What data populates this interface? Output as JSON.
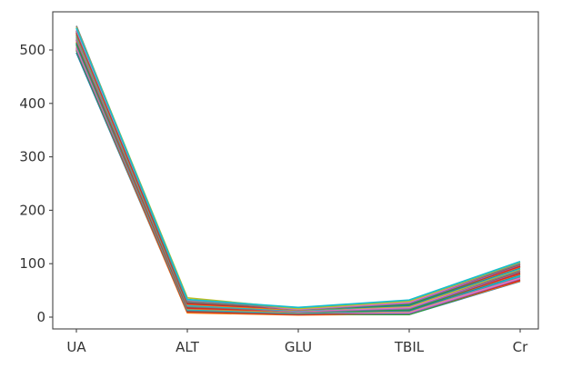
{
  "figure": {
    "background_color": "#ffffff"
  },
  "chart_data": {
    "type": "line",
    "title": "",
    "xlabel": "",
    "ylabel": "",
    "categories": [
      "UA",
      "ALT",
      "GLU",
      "TBIL",
      "Cr"
    ],
    "yticks": [
      0,
      100,
      200,
      300,
      400,
      500
    ],
    "ylim": [
      -22,
      571
    ],
    "grid": false,
    "legend": "none",
    "styles": {
      "axis_color": "#444444",
      "tick_label_color": "#333333",
      "tick_label_font_px": 15,
      "line_width": 1.7,
      "tick_length": 4
    },
    "series": [
      {
        "color": "#1f77b4",
        "values": [
          495,
          9,
          5,
          5,
          67
        ]
      },
      {
        "color": "#ff7f0e",
        "values": [
          500,
          8,
          4,
          6,
          68
        ]
      },
      {
        "color": "#2ca02c",
        "values": [
          499,
          12,
          6,
          5,
          70
        ]
      },
      {
        "color": "#d62728",
        "values": [
          503,
          10,
          5,
          8,
          69
        ]
      },
      {
        "color": "#9467bd",
        "values": [
          502,
          14,
          7,
          7,
          72
        ]
      },
      {
        "color": "#8c564b",
        "values": [
          506,
          11,
          6,
          10,
          74
        ]
      },
      {
        "color": "#e377c2",
        "values": [
          505,
          15,
          8,
          9,
          73
        ]
      },
      {
        "color": "#7f7f7f",
        "values": [
          509,
          13,
          7,
          12,
          76
        ]
      },
      {
        "color": "#bcbd22",
        "values": [
          510,
          17,
          9,
          11,
          78
        ]
      },
      {
        "color": "#17becf",
        "values": [
          512,
          14,
          8,
          13,
          77
        ]
      },
      {
        "color": "#1f77b4",
        "values": [
          511,
          18,
          10,
          12,
          80
        ]
      },
      {
        "color": "#ff7f0e",
        "values": [
          515,
          16,
          9,
          15,
          81
        ]
      },
      {
        "color": "#2ca02c",
        "values": [
          514,
          20,
          10,
          14,
          83
        ]
      },
      {
        "color": "#d62728",
        "values": [
          518,
          17,
          11,
          17,
          82
        ]
      },
      {
        "color": "#9467bd",
        "values": [
          519,
          21,
          10,
          16,
          85
        ]
      },
      {
        "color": "#8c564b",
        "values": [
          521,
          19,
          12,
          19,
          86
        ]
      },
      {
        "color": "#e377c2",
        "values": [
          522,
          23,
          11,
          18,
          88
        ]
      },
      {
        "color": "#7f7f7f",
        "values": [
          524,
          20,
          12,
          21,
          87
        ]
      },
      {
        "color": "#bcbd22",
        "values": [
          526,
          25,
          13,
          20,
          90
        ]
      },
      {
        "color": "#17becf",
        "values": [
          527,
          22,
          12,
          23,
          91
        ]
      },
      {
        "color": "#1f77b4",
        "values": [
          529,
          26,
          14,
          22,
          93
        ]
      },
      {
        "color": "#ff7f0e",
        "values": [
          530,
          24,
          13,
          25,
          94
        ]
      },
      {
        "color": "#2ca02c",
        "values": [
          532,
          28,
          14,
          24,
          96
        ]
      },
      {
        "color": "#d62728",
        "values": [
          533,
          25,
          15,
          27,
          95
        ]
      },
      {
        "color": "#9467bd",
        "values": [
          535,
          30,
          14,
          26,
          98
        ]
      },
      {
        "color": "#8c564b",
        "values": [
          536,
          27,
          16,
          29,
          99
        ]
      },
      {
        "color": "#e377c2",
        "values": [
          538,
          32,
          15,
          28,
          101
        ]
      },
      {
        "color": "#7f7f7f",
        "values": [
          545,
          29,
          17,
          31,
          100
        ]
      },
      {
        "color": "#bcbd22",
        "values": [
          542,
          36,
          16,
          30,
          103
        ]
      },
      {
        "color": "#17becf",
        "values": [
          541,
          33,
          18,
          32,
          104
        ]
      }
    ]
  }
}
